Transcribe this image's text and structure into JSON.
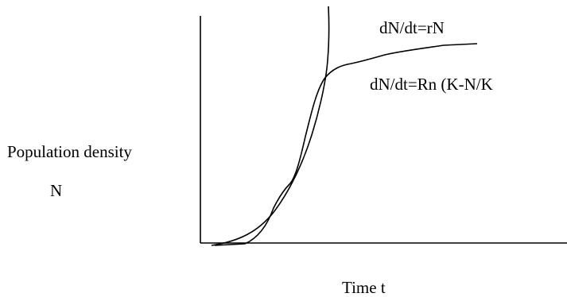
{
  "diagram": {
    "y_axis_label": "Population density",
    "y_axis_symbol": "N",
    "x_axis_label": "Time  t",
    "curves": [
      {
        "name": "exponential-curve",
        "equation": "dN/dt=rN",
        "shape": "J-shaped exponential growth"
      },
      {
        "name": "logistic-curve",
        "equation": "dN/dt=Rn (K-N/K",
        "shape": "S-shaped logistic growth"
      }
    ],
    "colors": {
      "line": "#000000",
      "background": "#ffffff"
    }
  }
}
